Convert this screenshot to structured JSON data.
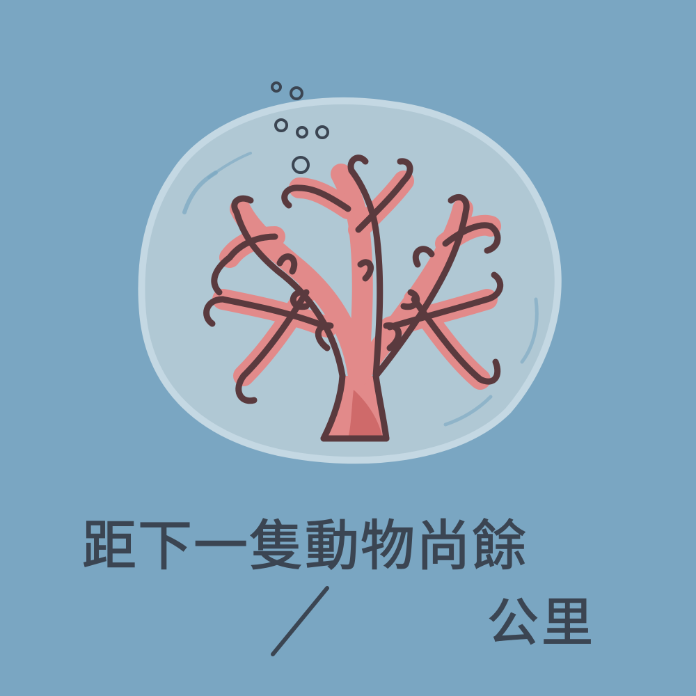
{
  "caption": {
    "line1": "距下一隻動物尚餘",
    "unit": "公里"
  },
  "colors": {
    "background": "#7aa6c2",
    "bubble": "#b3cad6",
    "coral": "#e28a8a",
    "coral_outline": "#5a3a3e",
    "ink": "#3b4552"
  },
  "icons": {
    "main": "coral-in-bubble-icon",
    "bubbles": "air-bubbles-icon",
    "separator": "slash-icon"
  }
}
